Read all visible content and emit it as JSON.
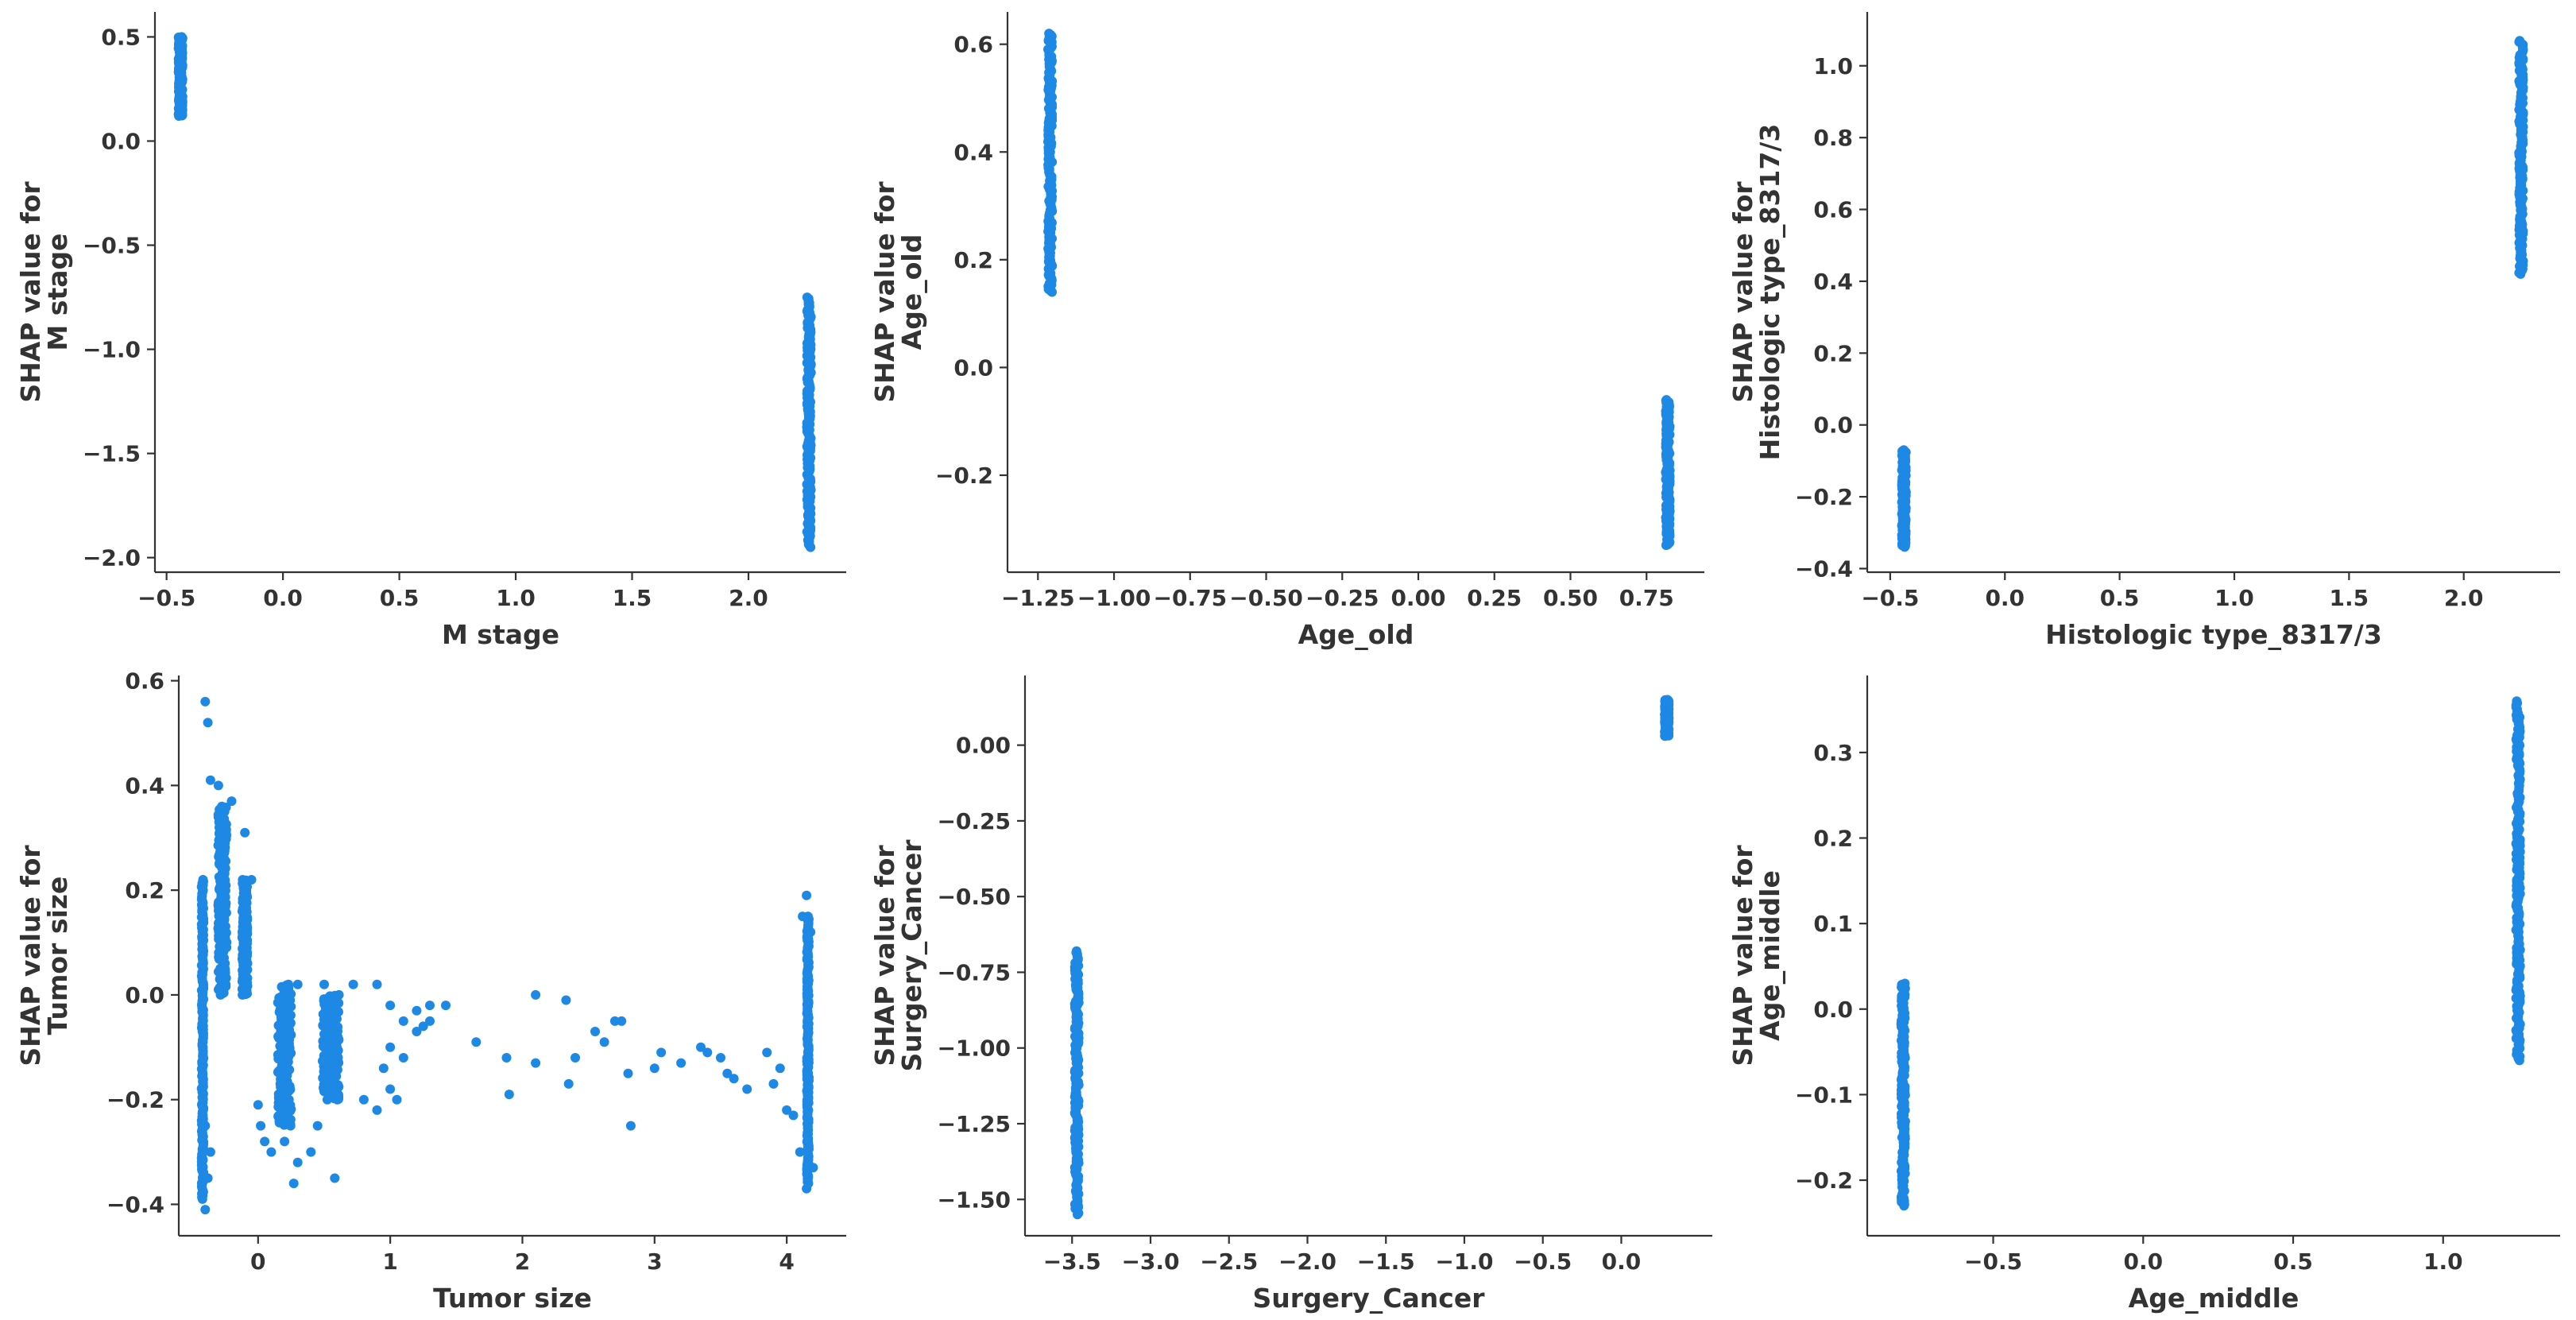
{
  "chart_data": [
    {
      "type": "scatter",
      "xlabel": "M stage",
      "ylabel": [
        "SHAP value for",
        "M stage"
      ],
      "xlim": [
        -0.55,
        2.42
      ],
      "ylim": [
        -2.07,
        0.62
      ],
      "xticks": [
        -0.5,
        0.0,
        0.5,
        1.0,
        1.5,
        2.0
      ],
      "xtick_labels": [
        "−0.5",
        "0.0",
        "0.5",
        "1.0",
        "1.5",
        "2.0"
      ],
      "yticks": [
        0.5,
        0.0,
        -0.5,
        -1.0,
        -1.5,
        -2.0
      ],
      "ytick_labels": [
        "0.5",
        "0.0",
        "−0.5",
        "−1.0",
        "−1.5",
        "−2.0"
      ],
      "grid": false,
      "color": "#1e88e5",
      "clusters": [
        {
          "x": -0.44,
          "y_min": 0.12,
          "y_max": 0.5
        },
        {
          "x": 2.26,
          "y_min": -1.95,
          "y_max": -0.75
        }
      ]
    },
    {
      "type": "scatter",
      "xlabel": "Age_old",
      "ylabel": [
        "SHAP value for",
        "Age_old"
      ],
      "xlim": [
        -1.35,
        0.94
      ],
      "ylim": [
        -0.38,
        0.66
      ],
      "xticks": [
        -1.25,
        -1.0,
        -0.75,
        -0.5,
        -0.25,
        0.0,
        0.25,
        0.5,
        0.75
      ],
      "xtick_labels": [
        "−1.25",
        "−1.00",
        "−0.75",
        "−0.50",
        "−0.25",
        "0.00",
        "0.25",
        "0.50",
        "0.75"
      ],
      "yticks": [
        0.6,
        0.4,
        0.2,
        0.0,
        -0.2
      ],
      "ytick_labels": [
        "0.6",
        "0.4",
        "0.2",
        "0.0",
        "−0.2"
      ],
      "grid": false,
      "color": "#1e88e5",
      "clusters": [
        {
          "x": -1.21,
          "y_min": 0.14,
          "y_max": 0.62
        },
        {
          "x": 0.82,
          "y_min": -0.33,
          "y_max": -0.06
        }
      ]
    },
    {
      "type": "scatter",
      "xlabel": "Histologic type_8317/3",
      "ylabel": [
        "SHAP value for",
        "Histologic type_8317/3"
      ],
      "xlim": [
        -0.6,
        2.42
      ],
      "ylim": [
        -0.41,
        1.15
      ],
      "xticks": [
        -0.5,
        0.0,
        0.5,
        1.0,
        1.5,
        2.0
      ],
      "xtick_labels": [
        "−0.5",
        "0.0",
        "0.5",
        "1.0",
        "1.5",
        "2.0"
      ],
      "yticks": [
        1.0,
        0.8,
        0.6,
        0.4,
        0.2,
        0.0,
        -0.2,
        -0.4
      ],
      "ytick_labels": [
        "1.0",
        "0.8",
        "0.6",
        "0.4",
        "0.2",
        "0.0",
        "−0.2",
        "−0.4"
      ],
      "grid": false,
      "color": "#1e88e5",
      "clusters": [
        {
          "x": -0.44,
          "y_min": -0.34,
          "y_max": -0.07
        },
        {
          "x": 2.25,
          "y_min": 0.42,
          "y_max": 1.07
        }
      ]
    },
    {
      "type": "scatter",
      "xlabel": "Tumor size",
      "ylabel": [
        "SHAP value for",
        "Tumor size"
      ],
      "xlim": [
        -0.6,
        4.45
      ],
      "ylim": [
        -0.46,
        0.61
      ],
      "xticks": [
        0,
        1,
        2,
        3,
        4
      ],
      "xtick_labels": [
        "0",
        "1",
        "2",
        "3",
        "4"
      ],
      "yticks": [
        0.6,
        0.4,
        0.2,
        0.0,
        -0.2,
        -0.4
      ],
      "ytick_labels": [
        "0.6",
        "0.4",
        "0.2",
        "0.0",
        "−0.2",
        "−0.4"
      ],
      "grid": false,
      "color": "#1e88e5",
      "points": [
        [
          -0.4,
          0.56
        ],
        [
          -0.38,
          0.52
        ],
        [
          -0.36,
          0.41
        ],
        [
          -0.3,
          0.4
        ],
        [
          -0.2,
          0.37
        ],
        [
          -0.1,
          0.31
        ],
        [
          -0.05,
          0.22
        ],
        [
          -0.4,
          -0.41
        ],
        [
          -0.42,
          -0.38
        ],
        [
          -0.38,
          -0.35
        ],
        [
          -0.36,
          -0.3
        ],
        [
          -0.4,
          -0.25
        ],
        [
          0.0,
          -0.21
        ],
        [
          0.02,
          -0.25
        ],
        [
          0.05,
          -0.28
        ],
        [
          0.1,
          -0.3
        ],
        [
          0.2,
          -0.28
        ],
        [
          0.3,
          -0.32
        ],
        [
          0.4,
          -0.3
        ],
        [
          0.27,
          -0.36
        ],
        [
          0.58,
          -0.35
        ],
        [
          0.45,
          -0.25
        ],
        [
          0.6,
          -0.2
        ],
        [
          0.8,
          -0.2
        ],
        [
          1.0,
          -0.18
        ],
        [
          1.05,
          -0.2
        ],
        [
          0.9,
          -0.22
        ],
        [
          0.3,
          0.02
        ],
        [
          0.5,
          0.02
        ],
        [
          0.72,
          0.02
        ],
        [
          0.9,
          0.02
        ],
        [
          1.0,
          -0.02
        ],
        [
          1.2,
          -0.03
        ],
        [
          1.3,
          -0.02
        ],
        [
          1.2,
          -0.07
        ],
        [
          1.25,
          -0.06
        ],
        [
          1.1,
          -0.05
        ],
        [
          1.0,
          -0.1
        ],
        [
          1.1,
          -0.12
        ],
        [
          0.95,
          -0.14
        ],
        [
          1.3,
          -0.05
        ],
        [
          1.42,
          -0.02
        ],
        [
          1.65,
          -0.09
        ],
        [
          1.88,
          -0.12
        ],
        [
          1.9,
          -0.19
        ],
        [
          2.1,
          0.0
        ],
        [
          2.1,
          -0.13
        ],
        [
          2.4,
          -0.12
        ],
        [
          2.35,
          -0.17
        ],
        [
          2.33,
          -0.01
        ],
        [
          2.55,
          -0.07
        ],
        [
          2.62,
          -0.09
        ],
        [
          2.7,
          -0.05
        ],
        [
          2.75,
          -0.05
        ],
        [
          2.8,
          -0.15
        ],
        [
          2.82,
          -0.25
        ],
        [
          3.0,
          -0.14
        ],
        [
          3.05,
          -0.11
        ],
        [
          3.2,
          -0.13
        ],
        [
          3.35,
          -0.1
        ],
        [
          3.4,
          -0.11
        ],
        [
          3.5,
          -0.12
        ],
        [
          3.55,
          -0.15
        ],
        [
          3.6,
          -0.16
        ],
        [
          3.7,
          -0.18
        ],
        [
          3.85,
          -0.11
        ],
        [
          3.9,
          -0.17
        ],
        [
          3.95,
          -0.14
        ],
        [
          4.0,
          -0.22
        ],
        [
          4.05,
          -0.23
        ],
        [
          4.15,
          0.19
        ],
        [
          4.12,
          0.15
        ],
        [
          4.18,
          0.12
        ],
        [
          4.1,
          -0.3
        ],
        [
          4.15,
          -0.37
        ],
        [
          4.2,
          -0.33
        ]
      ],
      "clusters": [
        {
          "x": -0.42,
          "y_min": -0.39,
          "y_max": 0.22,
          "spread": 0.03
        },
        {
          "x": -0.27,
          "y_min": 0.0,
          "y_max": 0.36,
          "spread": 0.13
        },
        {
          "x": -0.1,
          "y_min": 0.0,
          "y_max": 0.22,
          "spread": 0.08
        },
        {
          "x": 0.2,
          "y_min": -0.25,
          "y_max": 0.02,
          "spread": 0.2
        },
        {
          "x": 0.55,
          "y_min": -0.2,
          "y_max": 0.0,
          "spread": 0.25
        },
        {
          "x": 4.16,
          "y_min": -0.36,
          "y_max": 0.15,
          "spread": 0.03
        }
      ]
    },
    {
      "type": "scatter",
      "xlabel": "Surgery_Cancer",
      "ylabel": [
        "SHAP value for",
        "Surgery_Cancer"
      ],
      "xlim": [
        -3.8,
        0.58
      ],
      "ylim": [
        -1.62,
        0.23
      ],
      "xticks": [
        -3.5,
        -3.0,
        -2.5,
        -2.0,
        -1.5,
        -1.0,
        -0.5,
        0.0
      ],
      "xtick_labels": [
        "−3.5",
        "−3.0",
        "−2.5",
        "−2.0",
        "−1.5",
        "−1.0",
        "−0.5",
        "0.0"
      ],
      "yticks": [
        0.0,
        -0.25,
        -0.5,
        -0.75,
        -1.0,
        -1.25,
        -1.5
      ],
      "ytick_labels": [
        "0.00",
        "−0.25",
        "−0.50",
        "−0.75",
        "−1.00",
        "−1.25",
        "−1.50"
      ],
      "grid": false,
      "color": "#1e88e5",
      "clusters": [
        {
          "x": -3.47,
          "y_min": -1.55,
          "y_max": -0.68
        },
        {
          "x": 0.29,
          "y_min": 0.03,
          "y_max": 0.15
        }
      ]
    },
    {
      "type": "scatter",
      "xlabel": "Age_middle",
      "ylabel": [
        "SHAP value for",
        "Age_middle"
      ],
      "xlim": [
        -0.92,
        1.39
      ],
      "ylim": [
        -0.265,
        0.39
      ],
      "xticks": [
        -0.5,
        0.0,
        0.5,
        1.0
      ],
      "xtick_labels": [
        "−0.5",
        "0.0",
        "0.5",
        "1.0"
      ],
      "yticks": [
        0.3,
        0.2,
        0.1,
        0.0,
        -0.1,
        -0.2
      ],
      "ytick_labels": [
        "0.3",
        "0.2",
        "0.1",
        "0.0",
        "−0.1",
        "−0.2"
      ],
      "grid": false,
      "color": "#1e88e5",
      "clusters": [
        {
          "x": -0.8,
          "y_min": -0.23,
          "y_max": 0.03
        },
        {
          "x": 1.25,
          "y_min": -0.06,
          "y_max": 0.36
        }
      ]
    }
  ]
}
